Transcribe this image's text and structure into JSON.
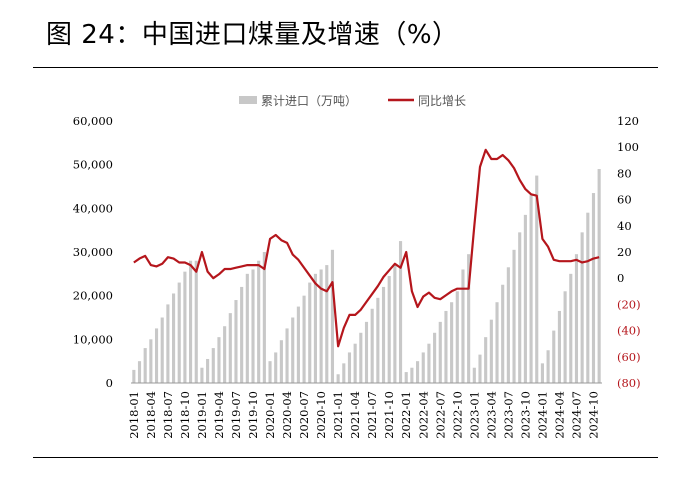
{
  "title": "图 24：中国进口煤量及增速（%）",
  "colors": {
    "bar": "#c8c8c8",
    "line": "#b5161c",
    "neg_label": "#b5161c",
    "axis": "#999999"
  },
  "chart_data": {
    "type": "bar+line",
    "legend": [
      "累计进口（万吨）",
      "同比增长"
    ],
    "left_axis": {
      "ylim": [
        0,
        60000
      ],
      "ticks": [
        "0",
        "10,000",
        "20,000",
        "30,000",
        "40,000",
        "50,000",
        "60,000"
      ]
    },
    "right_axis": {
      "ylim": [
        -80,
        120
      ],
      "ticks": [
        "(80)",
        "(60)",
        "(40)",
        "(20)",
        "0",
        "20",
        "40",
        "60",
        "80",
        "100",
        "120"
      ]
    },
    "x_tick_labels": [
      "2018-01",
      "2018-04",
      "2018-07",
      "2018-10",
      "2019-01",
      "2019-04",
      "2019-07",
      "2019-10",
      "2020-01",
      "2020-04",
      "2020-07",
      "2020-10",
      "2021-01",
      "2021-04",
      "2021-07",
      "2021-10",
      "2022-01",
      "2022-04",
      "2022-07",
      "2022-10",
      "2023-01",
      "2023-04",
      "2023-07",
      "2023-10",
      "2024-01",
      "2024-04",
      "2024-07",
      "2024-10"
    ],
    "series": [
      {
        "name": "累计进口（万吨）",
        "type": "bar",
        "axis": "left",
        "values": [
          3000,
          5000,
          8000,
          10000,
          12500,
          15000,
          18000,
          20500,
          23000,
          25500,
          28000,
          28000,
          3500,
          5500,
          8000,
          10500,
          13000,
          16000,
          19000,
          22000,
          25000,
          26000,
          28000,
          30000,
          5000,
          7000,
          9800,
          12500,
          15000,
          17500,
          20000,
          23000,
          25000,
          26000,
          27000,
          30500,
          2000,
          4500,
          7000,
          9000,
          11500,
          14000,
          17000,
          19500,
          22000,
          24500,
          27000,
          32500,
          2500,
          3500,
          5000,
          7000,
          9000,
          11500,
          14000,
          16500,
          18500,
          21000,
          26000,
          29500,
          3500,
          6500,
          10500,
          14500,
          18500,
          22500,
          26500,
          30500,
          34500,
          38500,
          43000,
          47500,
          4500,
          7500,
          12000,
          16500,
          21000,
          25000,
          29500,
          34500,
          39000,
          43500,
          49000
        ]
      },
      {
        "name": "同比增长",
        "type": "line",
        "axis": "right",
        "values": [
          12,
          15,
          17,
          10,
          9,
          11,
          16,
          15,
          12,
          12,
          10,
          5,
          20,
          5,
          0,
          3,
          7,
          7,
          8,
          9,
          10,
          10,
          10,
          7,
          30,
          33,
          29,
          27,
          18,
          14,
          8,
          2,
          -4,
          -8,
          -10,
          -3,
          -52,
          -38,
          -28,
          -28,
          -24,
          -18,
          -12,
          -6,
          1,
          6,
          11,
          8,
          20,
          -10,
          -22,
          -14,
          -11,
          -15,
          -16,
          -13,
          -10,
          -8,
          -8,
          -8,
          40,
          85,
          98,
          91,
          91,
          94,
          90,
          84,
          75,
          68,
          64,
          63,
          30,
          24,
          14,
          13,
          13,
          13,
          14,
          12,
          13,
          15,
          16
        ]
      }
    ]
  }
}
